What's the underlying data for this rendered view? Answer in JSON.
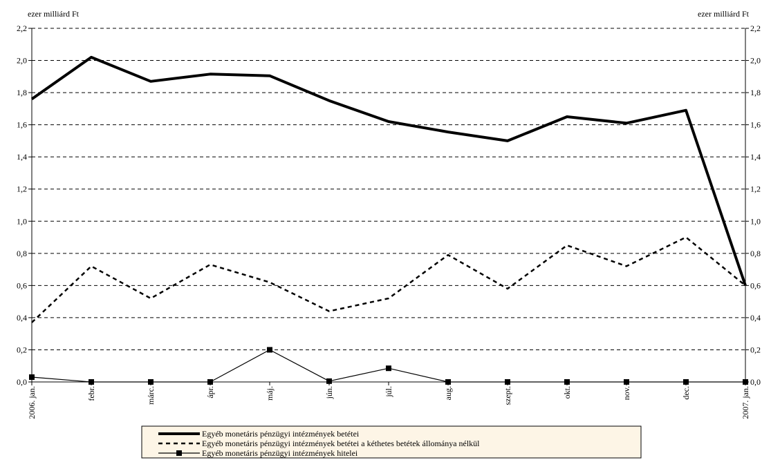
{
  "chart_data": {
    "type": "line",
    "left_axis_title": "ezer milliárd Ft",
    "right_axis_title": "ezer milliárd Ft",
    "ylim": [
      0,
      2.2
    ],
    "y_ticks": [
      "0,0",
      "0,2",
      "0,4",
      "0,6",
      "0,8",
      "1,0",
      "1,2",
      "1,4",
      "1,6",
      "1,8",
      "2,0",
      "2,2"
    ],
    "grid": "horizontal-dashed",
    "legend_placement": "bottom-center",
    "categories": [
      "2006. jan.",
      "febr.",
      "márc.",
      "ápr.",
      "máj.",
      "jún.",
      "júl.",
      "aug.",
      "szept.",
      "okt.",
      "nov.",
      "dec.",
      "2007. jan."
    ],
    "series": [
      {
        "name": "Egyéb monetáris pénzügyi  intézmények betétei",
        "style": "solid-thick",
        "color": "#000000",
        "values": [
          1.76,
          2.02,
          1.87,
          1.915,
          1.905,
          1.75,
          1.62,
          1.555,
          1.5,
          1.65,
          1.61,
          1.69,
          0.6
        ]
      },
      {
        "name": "Egyéb monetáris pénzügyi intézmények betétei a kéthetes betétek állománya nélkül",
        "style": "dashed",
        "color": "#000000",
        "values": [
          0.37,
          0.72,
          0.52,
          0.73,
          0.62,
          0.44,
          0.52,
          0.79,
          0.58,
          0.85,
          0.72,
          0.9,
          0.6
        ]
      },
      {
        "name": "Egyéb monetáris pénzügyi intézmények hitelei",
        "style": "solid-thin-square-markers",
        "color": "#000000",
        "values": [
          0.03,
          0.0,
          0.0,
          0.0,
          0.2,
          0.005,
          0.085,
          0.0,
          0.0,
          0.0,
          0.0,
          0.0,
          0.0
        ]
      }
    ]
  }
}
